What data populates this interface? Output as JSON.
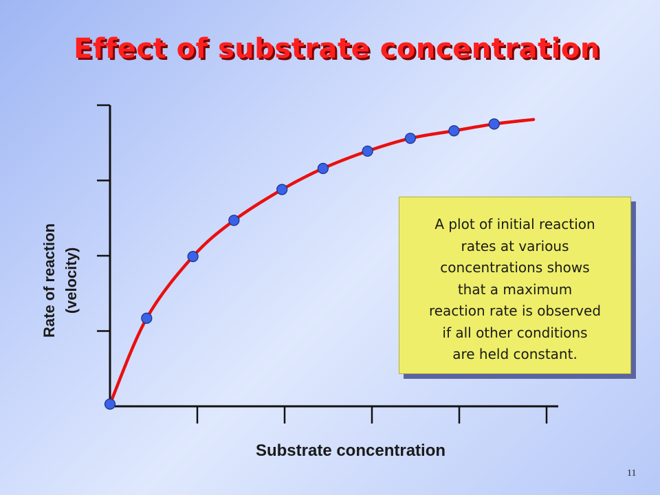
{
  "title": "Effect of substrate concentration",
  "slide_number": "11",
  "annotation": {
    "lines": [
      "A plot of initial reaction",
      "rates at various",
      "concentrations shows",
      "that a maximum",
      "reaction rate is observed",
      "if all other conditions",
      "are held constant."
    ]
  },
  "colors": {
    "title": "#ff1f1f",
    "curve": "#e81010",
    "points": "#3a62e6",
    "annotation_bg": "#eeee6a"
  },
  "chart_data": {
    "type": "line",
    "title": "Effect of substrate concentration",
    "xlabel": "Substrate concentration",
    "ylabel_lines": [
      "Rate of reaction",
      "(velocity)"
    ],
    "xlim": [
      0,
      5
    ],
    "ylim": [
      0,
      4
    ],
    "x_ticks": [
      1,
      2,
      3,
      4,
      5
    ],
    "y_ticks": [
      1,
      2,
      3,
      4
    ],
    "tick_labels_shown": false,
    "grid": false,
    "points": [
      {
        "x": 0.0,
        "y": 0.03
      },
      {
        "x": 0.42,
        "y": 1.17
      },
      {
        "x": 0.95,
        "y": 1.99
      },
      {
        "x": 1.42,
        "y": 2.47
      },
      {
        "x": 1.97,
        "y": 2.88
      },
      {
        "x": 2.44,
        "y": 3.16
      },
      {
        "x": 2.95,
        "y": 3.39
      },
      {
        "x": 3.44,
        "y": 3.56
      },
      {
        "x": 3.94,
        "y": 3.66
      },
      {
        "x": 4.4,
        "y": 3.75
      }
    ],
    "curve_end": {
      "x": 4.85,
      "y": 3.81
    }
  }
}
